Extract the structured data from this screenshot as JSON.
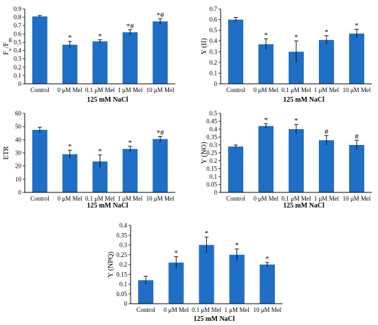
{
  "chart_data": [
    {
      "type": "bar",
      "ylabel": "Fv/Fm",
      "ylabel_main": "F",
      "ylabel_sub1": "v",
      "ylabel_sep": "/F",
      "ylabel_sub2": "m",
      "group_label": "125 mM NaCl",
      "categories": [
        "Control",
        "0 μM Mel",
        "0.1 μM Mel",
        "1 μM Mel",
        "10 μM Mel"
      ],
      "values": [
        0.81,
        0.47,
        0.51,
        0.62,
        0.75
      ],
      "errors": [
        0.01,
        0.04,
        0.02,
        0.03,
        0.03
      ],
      "markers": [
        "",
        "*",
        "*",
        "*#",
        "*#"
      ],
      "ylim": [
        0,
        0.9
      ],
      "yticks": [
        "0",
        "0.1",
        "0.2",
        "0.3",
        "0.4",
        "0.5",
        "0.6",
        "0.7",
        "0.8",
        "0.9"
      ],
      "bar_color": "#1f6fc6"
    },
    {
      "type": "bar",
      "ylabel": "Y (II)",
      "group_label": "125 mM NaCl",
      "categories": [
        "Control",
        "0 μM Mel",
        "0.1 μM Mel",
        "1 μM Mel",
        "10 μM Mel"
      ],
      "values": [
        0.6,
        0.37,
        0.3,
        0.41,
        0.47
      ],
      "errors": [
        0.02,
        0.05,
        0.1,
        0.04,
        0.04
      ],
      "markers": [
        "",
        "*",
        "*",
        "*",
        "*"
      ],
      "ylim": [
        0,
        0.7
      ],
      "yticks": [
        "0",
        "0.1",
        "0.2",
        "0.3",
        "0.4",
        "0.5",
        "0.6",
        "0.7"
      ],
      "bar_color": "#1f6fc6"
    },
    {
      "type": "bar",
      "ylabel": "ETR",
      "group_label": "125 mM NaCl",
      "categories": [
        "Control",
        "0 μM Mel",
        "0.1 μM Mel",
        "1 μM Mel",
        "10 μM Mel"
      ],
      "values": [
        47.5,
        29,
        23.5,
        33,
        40.5
      ],
      "errors": [
        2,
        3,
        5,
        2,
        2
      ],
      "markers": [
        "",
        "*",
        "*",
        "*",
        "*#"
      ],
      "ylim": [
        0,
        60
      ],
      "yticks": [
        "0",
        "10",
        "20",
        "30",
        "40",
        "50",
        "60"
      ],
      "bar_color": "#1f6fc6"
    },
    {
      "type": "bar",
      "ylabel": "Y (NO)",
      "group_label": "125 mM NaCl",
      "categories": [
        "Control",
        "0 μM Mel",
        "0.1 μM Mel",
        "1 μM Mel",
        "10 μM Mel"
      ],
      "values": [
        0.29,
        0.42,
        0.4,
        0.33,
        0.3
      ],
      "errors": [
        0.01,
        0.015,
        0.03,
        0.03,
        0.03
      ],
      "markers": [
        "",
        "*",
        "*",
        "#",
        "#"
      ],
      "ylim": [
        0,
        0.5
      ],
      "yticks": [
        "0",
        "0.05",
        "0.1",
        "0.15",
        "0.2",
        "0.25",
        "0.3",
        "0.35",
        "0.4",
        "0.45",
        "0.5"
      ],
      "bar_color": "#1f6fc6"
    },
    {
      "type": "bar",
      "ylabel": "Y (NPQ)",
      "group_label": "125 mM NaCl",
      "categories": [
        "Control",
        "0 μM Mel",
        "0.1 μM Mel",
        "1 μM Mel",
        "10 μM Mel"
      ],
      "values": [
        0.12,
        0.21,
        0.3,
        0.25,
        0.2
      ],
      "errors": [
        0.02,
        0.03,
        0.04,
        0.03,
        0.01
      ],
      "markers": [
        "",
        "*",
        "*",
        "*",
        "*"
      ],
      "ylim": [
        0,
        0.4
      ],
      "yticks": [
        "0",
        "0.05",
        "0.1",
        "0.15",
        "0.2",
        "0.25",
        "0.3",
        "0.35",
        "0.4"
      ],
      "bar_color": "#1f6fc6"
    }
  ]
}
